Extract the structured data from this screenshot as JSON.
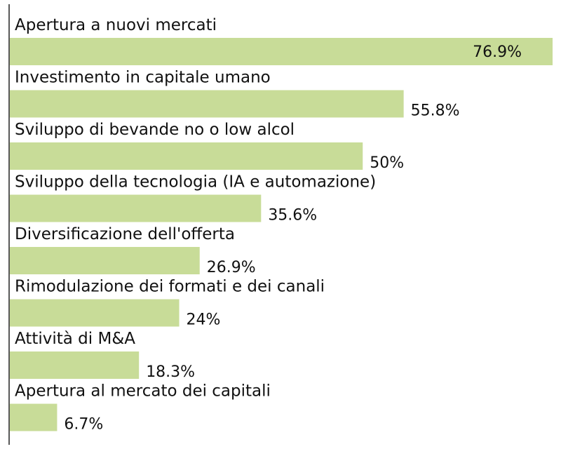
{
  "chart_data": {
    "type": "bar",
    "orientation": "horizontal",
    "categories": [
      "Apertura a nuovi mercati",
      "Investimento in capitale umano",
      "Sviluppo di bevande no o low alcol",
      "Sviluppo della tecnologia (IA e automazione)",
      "Diversificazione dell'offerta",
      "Rimodulazione dei formati e dei canali",
      "Attività di M&A",
      "Apertura al mercato dei capitali"
    ],
    "values": [
      76.9,
      55.8,
      50,
      35.6,
      26.9,
      24,
      18.3,
      6.7
    ],
    "value_labels": [
      "76.9%",
      "55.8%",
      "50%",
      "35.6%",
      "26.9%",
      "24%",
      "18.3%",
      "6.7%"
    ],
    "unit": "%",
    "xlim": [
      0,
      76.9
    ],
    "grid": false,
    "legend": "none",
    "bar_color": "#c8dc98",
    "axis_color": "#222222"
  }
}
